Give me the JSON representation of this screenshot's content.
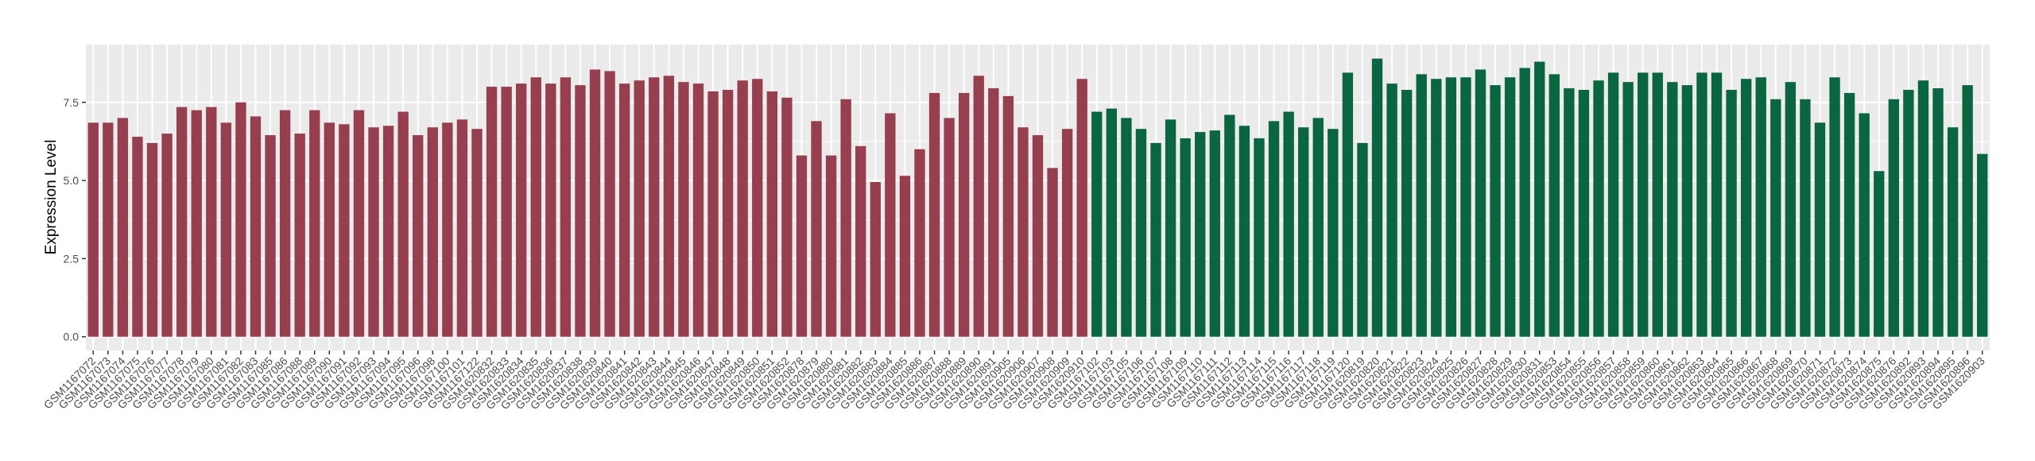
{
  "chart_data": {
    "type": "bar",
    "y_label": "Expression Level",
    "ylim": [
      -0.44,
      9.35
    ],
    "yticks": [
      {
        "value": 0,
        "label": "0.0"
      },
      {
        "value": 2.5,
        "label": "2.5"
      },
      {
        "value": 5,
        "label": "5.0"
      },
      {
        "value": 7.5,
        "label": "7.5"
      }
    ],
    "grid": true,
    "series": [
      {
        "color": "#973f4f",
        "categories": [
          "GSM1167072",
          "GSM1167073",
          "GSM1167074",
          "GSM1167075",
          "GSM1167076",
          "GSM1167077",
          "GSM1167078",
          "GSM1167079",
          "GSM1167080",
          "GSM1167081",
          "GSM1167082",
          "GSM1167083",
          "GSM1167085",
          "GSM1167086",
          "GSM1167088",
          "GSM1167089",
          "GSM1167090",
          "GSM1167091",
          "GSM1167092",
          "GSM1167093",
          "GSM1167094",
          "GSM1167095",
          "GSM1167096",
          "GSM1167098",
          "GSM1167100",
          "GSM1167101",
          "GSM1167122",
          "GSM1620832",
          "GSM1620833",
          "GSM1620834",
          "GSM1620835",
          "GSM1620836",
          "GSM1620837",
          "GSM1620838",
          "GSM1620839",
          "GSM1620840",
          "GSM1620841",
          "GSM1620842",
          "GSM1620843",
          "GSM1620844",
          "GSM1620845",
          "GSM1620846",
          "GSM1620847",
          "GSM1620848",
          "GSM1620849",
          "GSM1620850",
          "GSM1620851",
          "GSM1620852",
          "GSM1620878",
          "GSM1620879",
          "GSM1620880",
          "GSM1620881",
          "GSM1620882",
          "GSM1620883",
          "GSM1620884",
          "GSM1620885",
          "GSM1620886",
          "GSM1620887",
          "GSM1620888",
          "GSM1620889",
          "GSM1620890",
          "GSM1620891",
          "GSM1620905",
          "GSM1620906",
          "GSM1620907",
          "GSM1620908",
          "GSM1620909",
          "GSM1620910"
        ],
        "values": [
          6.85,
          6.85,
          7.0,
          6.4,
          6.2,
          6.5,
          7.35,
          7.25,
          7.35,
          6.85,
          7.5,
          7.05,
          6.45,
          7.25,
          6.5,
          7.25,
          6.85,
          6.8,
          7.25,
          6.7,
          6.75,
          7.2,
          6.45,
          6.7,
          6.85,
          6.95,
          6.65,
          8.0,
          8.0,
          8.1,
          8.3,
          8.1,
          8.3,
          8.05,
          8.55,
          8.5,
          8.1,
          8.2,
          8.3,
          8.35,
          8.15,
          8.1,
          7.85,
          7.9,
          8.2,
          8.25,
          7.85,
          7.65,
          5.8,
          6.9,
          5.8,
          7.6,
          6.1,
          4.95,
          7.15,
          5.15,
          6.0,
          7.8,
          7.0,
          7.8,
          8.35,
          7.95,
          7.7,
          6.7,
          6.45,
          5.4,
          6.65,
          8.25
        ]
      },
      {
        "color": "#0a6641",
        "categories": [
          "GSM1167102",
          "GSM1167103",
          "GSM1167105",
          "GSM1167106",
          "GSM1167107",
          "GSM1167108",
          "GSM1167109",
          "GSM1167110",
          "GSM1167111",
          "GSM1167112",
          "GSM1167113",
          "GSM1167114",
          "GSM1167115",
          "GSM1167116",
          "GSM1167117",
          "GSM1167118",
          "GSM1167119",
          "GSM1167120",
          "GSM1620819",
          "GSM1620820",
          "GSM1620821",
          "GSM1620822",
          "GSM1620823",
          "GSM1620824",
          "GSM1620825",
          "GSM1620826",
          "GSM1620827",
          "GSM1620828",
          "GSM1620829",
          "GSM1620830",
          "GSM1620831",
          "GSM1620853",
          "GSM1620854",
          "GSM1620855",
          "GSM1620856",
          "GSM1620857",
          "GSM1620858",
          "GSM1620859",
          "GSM1620860",
          "GSM1620861",
          "GSM1620862",
          "GSM1620863",
          "GSM1620864",
          "GSM1620865",
          "GSM1620866",
          "GSM1620867",
          "GSM1620868",
          "GSM1620869",
          "GSM1620870",
          "GSM1620871",
          "GSM1620872",
          "GSM1620873",
          "GSM1620874",
          "GSM1620875",
          "GSM1620876",
          "GSM1620892",
          "GSM1620893",
          "GSM1620894",
          "GSM1620895",
          "GSM1620896",
          "GSM1620903"
        ],
        "values": [
          7.2,
          7.3,
          7.0,
          6.65,
          6.2,
          6.95,
          6.35,
          6.55,
          6.6,
          7.1,
          6.75,
          6.35,
          6.9,
          7.2,
          6.7,
          7.0,
          6.65,
          8.45,
          6.2,
          8.9,
          8.1,
          7.9,
          8.4,
          8.25,
          8.3,
          8.3,
          8.55,
          8.05,
          8.3,
          8.6,
          8.8,
          8.4,
          7.95,
          7.9,
          8.2,
          8.45,
          8.15,
          8.45,
          8.45,
          8.15,
          8.05,
          8.45,
          8.45,
          7.9,
          8.25,
          8.3,
          7.6,
          8.15,
          7.6,
          6.85,
          8.3,
          7.8,
          7.15,
          5.3,
          7.6,
          7.9,
          8.2,
          7.95,
          6.7,
          8.05,
          5.85
        ]
      }
    ]
  }
}
